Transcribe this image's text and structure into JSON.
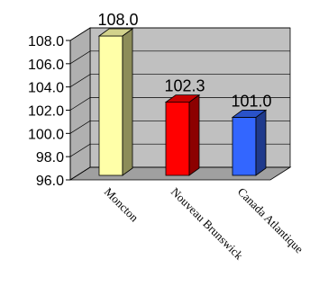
{
  "chart_data": {
    "type": "bar",
    "title": "",
    "xlabel": "",
    "ylabel": "",
    "categories": [
      "Moncton",
      "Nouveau Brunswick",
      "Canada Atlantique"
    ],
    "values": [
      108.0,
      102.3,
      101.0
    ],
    "value_labels": [
      "108.0",
      "102.3",
      "101.0"
    ],
    "ylim": [
      96.0,
      108.0
    ],
    "yticks": [
      96.0,
      98.0,
      100.0,
      102.0,
      104.0,
      106.0,
      108.0
    ],
    "ytick_labels": [
      "96.0",
      "98.0",
      "100.0",
      "102.0",
      "104.0",
      "106.0",
      "108.0"
    ],
    "grid": true,
    "legend": "none",
    "bar_colors": [
      {
        "front": "#ffffa8",
        "side": "#8c8c59",
        "top": "#d2d28c"
      },
      {
        "front": "#ff0000",
        "side": "#8c0000",
        "top": "#c80000"
      },
      {
        "front": "#3366ff",
        "side": "#1f3a8c",
        "top": "#2a52c8"
      }
    ],
    "wall_color": "#c0c0c0",
    "floor_color": "#a0a0a0"
  }
}
